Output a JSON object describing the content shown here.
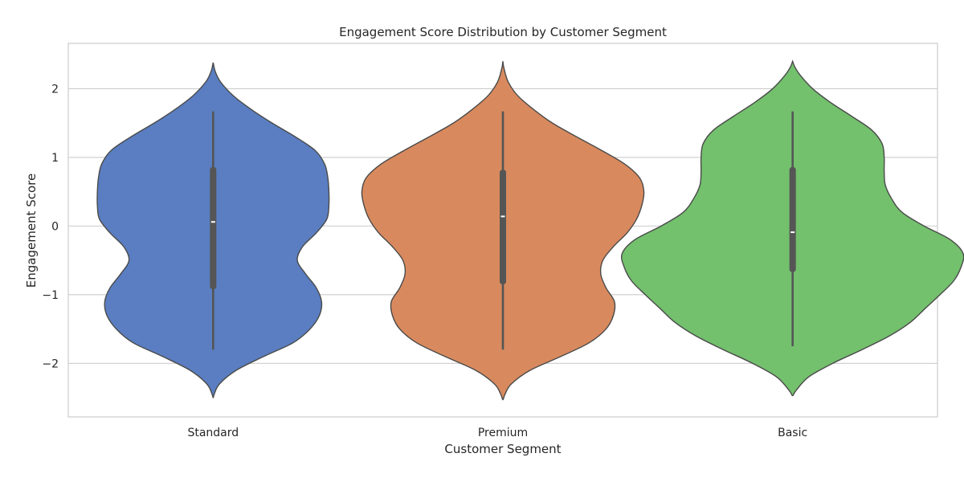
{
  "chart_data": {
    "type": "violin",
    "title": "Engagement Score Distribution by Customer Segment",
    "xlabel": "Customer Segment",
    "ylabel": "Engagement Score",
    "ylim": [
      -2.78,
      2.66
    ],
    "yticks": [
      2,
      1,
      0,
      -1,
      -2
    ],
    "ytick_labels": [
      "2",
      "1",
      "0",
      "−1",
      "−2"
    ],
    "grid": "horizontal",
    "categories": [
      "Standard",
      "Premium",
      "Basic"
    ],
    "colors": [
      "#5a7ec1",
      "#d88a5e",
      "#73c06d"
    ],
    "violins": [
      {
        "name": "Standard",
        "profile": [
          [
            -2.5,
            0.0
          ],
          [
            -2.45,
            0.01
          ],
          [
            -2.3,
            0.06
          ],
          [
            -2.1,
            0.22
          ],
          [
            -1.9,
            0.48
          ],
          [
            -1.7,
            0.76
          ],
          [
            -1.5,
            0.92
          ],
          [
            -1.3,
            1.01
          ],
          [
            -1.1,
            1.03
          ],
          [
            -0.9,
            0.98
          ],
          [
            -0.7,
            0.88
          ],
          [
            -0.5,
            0.8
          ],
          [
            -0.3,
            0.85
          ],
          [
            -0.1,
            0.98
          ],
          [
            0.1,
            1.08
          ],
          [
            0.3,
            1.1
          ],
          [
            0.5,
            1.1
          ],
          [
            0.7,
            1.09
          ],
          [
            0.9,
            1.06
          ],
          [
            1.1,
            0.97
          ],
          [
            1.3,
            0.78
          ],
          [
            1.5,
            0.56
          ],
          [
            1.7,
            0.36
          ],
          [
            1.9,
            0.19
          ],
          [
            2.1,
            0.07
          ],
          [
            2.25,
            0.02
          ],
          [
            2.38,
            0.0
          ]
        ],
        "q1": -0.92,
        "median": 0.06,
        "q3": 0.86,
        "whisker_low": -1.8,
        "whisker_high": 1.67
      },
      {
        "name": "Premium",
        "profile": [
          [
            -2.53,
            0.0
          ],
          [
            -2.45,
            0.02
          ],
          [
            -2.3,
            0.08
          ],
          [
            -2.1,
            0.26
          ],
          [
            -1.9,
            0.55
          ],
          [
            -1.7,
            0.82
          ],
          [
            -1.5,
            0.98
          ],
          [
            -1.3,
            1.05
          ],
          [
            -1.1,
            1.06
          ],
          [
            -0.9,
            0.98
          ],
          [
            -0.7,
            0.93
          ],
          [
            -0.5,
            0.95
          ],
          [
            -0.3,
            1.05
          ],
          [
            -0.1,
            1.18
          ],
          [
            0.1,
            1.27
          ],
          [
            0.3,
            1.32
          ],
          [
            0.5,
            1.34
          ],
          [
            0.7,
            1.3
          ],
          [
            0.9,
            1.16
          ],
          [
            1.1,
            0.94
          ],
          [
            1.3,
            0.7
          ],
          [
            1.5,
            0.47
          ],
          [
            1.7,
            0.29
          ],
          [
            1.9,
            0.14
          ],
          [
            2.1,
            0.05
          ],
          [
            2.3,
            0.01
          ],
          [
            2.4,
            0.0
          ]
        ],
        "q1": -0.85,
        "median": 0.14,
        "q3": 0.82,
        "whisker_low": -1.8,
        "whisker_high": 1.67
      },
      {
        "name": "Basic",
        "profile": [
          [
            -2.47,
            0.0
          ],
          [
            -2.4,
            0.03
          ],
          [
            -2.2,
            0.15
          ],
          [
            -2.0,
            0.38
          ],
          [
            -1.8,
            0.66
          ],
          [
            -1.6,
            0.92
          ],
          [
            -1.4,
            1.12
          ],
          [
            -1.2,
            1.26
          ],
          [
            -1.0,
            1.4
          ],
          [
            -0.8,
            1.53
          ],
          [
            -0.6,
            1.6
          ],
          [
            -0.4,
            1.62
          ],
          [
            -0.2,
            1.5
          ],
          [
            0.0,
            1.25
          ],
          [
            0.2,
            1.04
          ],
          [
            0.4,
            0.94
          ],
          [
            0.6,
            0.88
          ],
          [
            0.8,
            0.87
          ],
          [
            1.0,
            0.87
          ],
          [
            1.2,
            0.85
          ],
          [
            1.4,
            0.75
          ],
          [
            1.6,
            0.56
          ],
          [
            1.8,
            0.36
          ],
          [
            2.0,
            0.19
          ],
          [
            2.2,
            0.07
          ],
          [
            2.32,
            0.02
          ],
          [
            2.4,
            0.0
          ]
        ],
        "q1": -0.67,
        "median": -0.09,
        "q3": 0.86,
        "whisker_low": -1.75,
        "whisker_high": 1.67
      }
    ]
  }
}
